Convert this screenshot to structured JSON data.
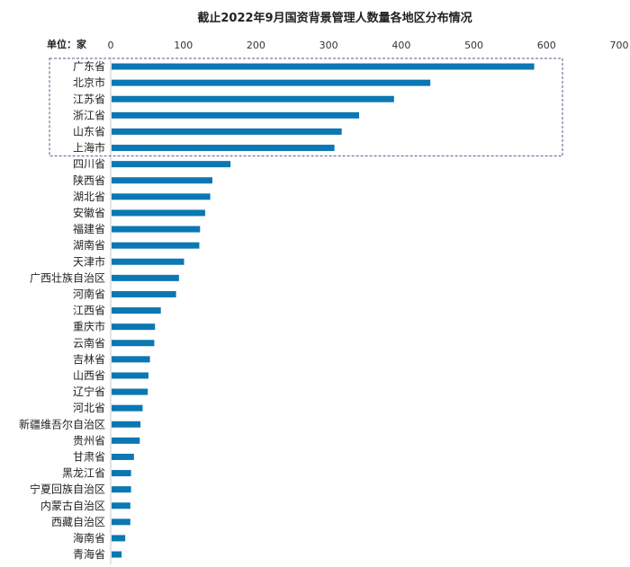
{
  "title": "截止2022年9月国资背景管理人数量各地区分布情况",
  "unit_label": "单位：家",
  "colors": {
    "bar": "#0b78b3",
    "highlight_border": "#5a5a8a",
    "axis": "#c8c8c8"
  },
  "chart_data": {
    "type": "bar",
    "orientation": "horizontal",
    "title": "截止2022年9月国资背景管理人数量各地区分布情况",
    "xlabel": "单位：家",
    "ylabel": "",
    "xlim": [
      0,
      700
    ],
    "x_ticks": [
      0,
      100,
      200,
      300,
      400,
      500,
      600,
      700
    ],
    "x_axis_position": "top",
    "grid": false,
    "highlight_box": {
      "categories": [
        "广东省",
        "北京市",
        "江苏省",
        "浙江省",
        "山东省",
        "上海市"
      ],
      "style": "dashed"
    },
    "categories": [
      "广东省",
      "北京市",
      "江苏省",
      "浙江省",
      "山东省",
      "上海市",
      "四川省",
      "陕西省",
      "湖北省",
      "安徽省",
      "福建省",
      "湖南省",
      "天津市",
      "广西壮族自治区",
      "河南省",
      "江西省",
      "重庆市",
      "云南省",
      "吉林省",
      "山西省",
      "辽宁省",
      "河北省",
      "新疆维吾尔自治区",
      "贵州省",
      "甘肃省",
      "黑龙江省",
      "宁夏回族自治区",
      "内蒙古自治区",
      "西藏自治区",
      "海南省",
      "青海省"
    ],
    "values": [
      583,
      440,
      390,
      342,
      318,
      308,
      165,
      140,
      137,
      130,
      123,
      122,
      101,
      94,
      90,
      69,
      61,
      60,
      54,
      52,
      51,
      44,
      41,
      40,
      32,
      28,
      28,
      27,
      27,
      20,
      15
    ]
  }
}
